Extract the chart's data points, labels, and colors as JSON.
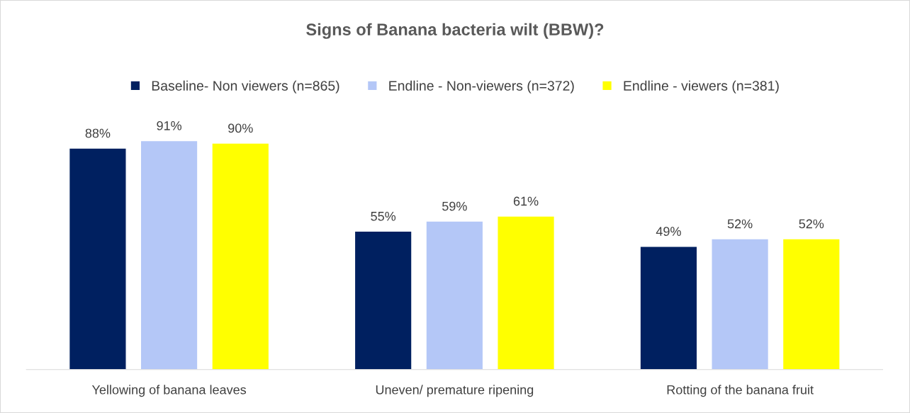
{
  "chart_data": {
    "type": "bar",
    "title": "Signs of Banana bacteria wilt (BBW)?",
    "categories": [
      "Yellowing of banana leaves",
      "Uneven/ premature ripening",
      "Rotting of the banana fruit"
    ],
    "series": [
      {
        "name": "Baseline- Non viewers (n=865)",
        "color": "#002060",
        "values": [
          88,
          55,
          49
        ],
        "value_labels": [
          "88%",
          "55%",
          "49%"
        ]
      },
      {
        "name": "Endline - Non-viewers (n=372)",
        "color": "#b4c7f7",
        "values": [
          91,
          59,
          52
        ],
        "value_labels": [
          "91%",
          "59%",
          "52%"
        ]
      },
      {
        "name": "Endline - viewers (n=381)",
        "color": "#ffff00",
        "values": [
          90,
          61,
          52
        ],
        "value_labels": [
          "90%",
          "61%",
          "52%"
        ]
      }
    ],
    "legend": "top",
    "grid": false,
    "tick_labels": "x"
  }
}
